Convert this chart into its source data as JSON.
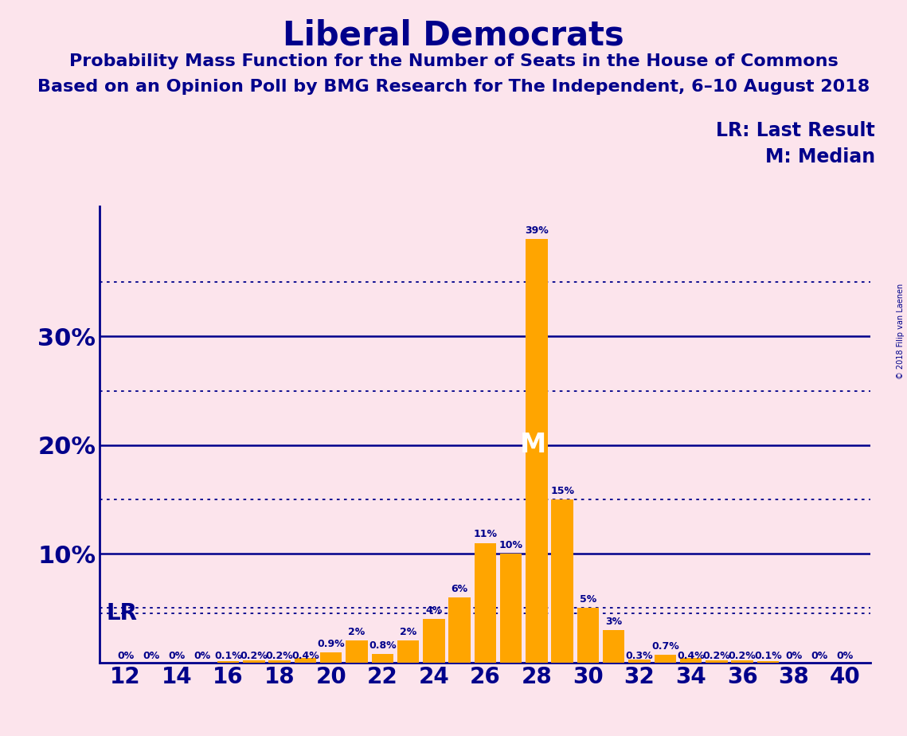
{
  "title": "Liberal Democrats",
  "subtitle1": "Probability Mass Function for the Number of Seats in the House of Commons",
  "subtitle2": "Based on an Opinion Poll by BMG Research for The Independent, 6–10 August 2018",
  "copyright": "© 2018 Filip van Laenen",
  "background_color": "#fce4ec",
  "bar_color": "#FFA500",
  "text_color": "#00008B",
  "legend_lr": "LR: Last Result",
  "legend_m": "M: Median",
  "lr_value": 12,
  "median_value": 28,
  "seats": [
    12,
    13,
    14,
    15,
    16,
    17,
    18,
    19,
    20,
    21,
    22,
    23,
    24,
    25,
    26,
    27,
    28,
    29,
    30,
    31,
    32,
    33,
    34,
    35,
    36,
    37,
    38,
    39,
    40
  ],
  "probabilities": [
    0.0,
    0.0,
    0.0,
    0.0,
    0.1,
    0.2,
    0.2,
    0.4,
    0.9,
    2.0,
    0.8,
    2.0,
    4.0,
    6.0,
    11.0,
    10.0,
    39.0,
    15.0,
    5.0,
    3.0,
    0.3,
    0.7,
    0.4,
    0.2,
    0.2,
    0.1,
    0.0,
    0.0,
    0.0
  ],
  "bar_labels": [
    "0%",
    "0%",
    "0%",
    "0%",
    "0.1%",
    "0.2%",
    "0.2%",
    "0.4%",
    "0.9%",
    "2%",
    "0.8%",
    "2%",
    "4%",
    "6%",
    "11%",
    "10%",
    "39%",
    "15%",
    "5%",
    "3%",
    "0.3%",
    "0.7%",
    "0.4%",
    "0.2%",
    "0.2%",
    "0.1%",
    "0%",
    "0%",
    "0%"
  ],
  "ylim_max": 42,
  "yticks": [
    0,
    5,
    10,
    15,
    20,
    25,
    30,
    35,
    40
  ],
  "dotted_lines": [
    5,
    15,
    25,
    35
  ],
  "solid_lines": [
    10,
    20,
    30
  ],
  "lr_line": 4.5,
  "xlim": [
    11,
    41
  ],
  "xticks": [
    12,
    14,
    16,
    18,
    20,
    22,
    24,
    26,
    28,
    30,
    32,
    34,
    36,
    38,
    40
  ],
  "title_fontsize": 30,
  "subtitle_fontsize": 16,
  "bar_label_fontsize": 9,
  "ytick_fontsize": 22,
  "xtick_fontsize": 20,
  "lr_label_fontsize": 20,
  "legend_fontsize": 17,
  "median_fontsize": 24
}
